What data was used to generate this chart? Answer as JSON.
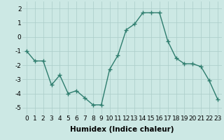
{
  "x": [
    0,
    1,
    2,
    3,
    4,
    5,
    6,
    7,
    8,
    9,
    10,
    11,
    12,
    13,
    14,
    15,
    16,
    17,
    18,
    19,
    20,
    21,
    22,
    23
  ],
  "y": [
    -1.0,
    -1.7,
    -1.7,
    -3.4,
    -2.7,
    -4.0,
    -3.8,
    -4.3,
    -4.8,
    -4.8,
    -2.3,
    -1.3,
    0.5,
    0.9,
    1.7,
    1.7,
    1.7,
    -0.3,
    -1.5,
    -1.9,
    -1.9,
    -2.1,
    -3.1,
    -4.4
  ],
  "line_color": "#2e7d6e",
  "marker": "+",
  "marker_size": 4,
  "marker_linewidth": 1.0,
  "linewidth": 1.0,
  "background_color": "#cce8e4",
  "grid_color": "#aaccc8",
  "xlabel": "Humidex (Indice chaleur)",
  "xlabel_fontsize": 7.5,
  "tick_fontsize": 6.5,
  "ylim": [
    -5.5,
    2.5
  ],
  "xlim": [
    -0.5,
    23.5
  ],
  "yticks": [
    -5,
    -4,
    -3,
    -2,
    -1,
    0,
    1,
    2
  ],
  "xticks": [
    0,
    1,
    2,
    3,
    4,
    5,
    6,
    7,
    8,
    9,
    10,
    11,
    12,
    13,
    14,
    15,
    16,
    17,
    18,
    19,
    20,
    21,
    22,
    23
  ]
}
